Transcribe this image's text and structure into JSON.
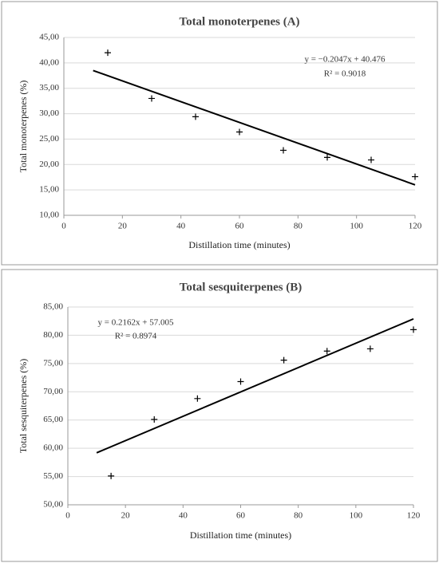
{
  "chart_data": [
    {
      "type": "scatter",
      "title": "Total monoterpenes (A)",
      "x_label": "Distillation time (minutes)",
      "y_label": "Total monoterpenes (%)",
      "annotations": [
        "y = −0.2047x + 40.476",
        "R² = 0.9018"
      ],
      "x": [
        15,
        30,
        45,
        60,
        75,
        90,
        105,
        120
      ],
      "values": [
        42.0,
        33.0,
        29.4,
        26.4,
        22.8,
        21.4,
        20.9,
        17.6
      ],
      "color": "#000000",
      "trendline": {
        "x": [
          10,
          120
        ],
        "values": [
          38.5,
          16.0
        ]
      },
      "xlim": [
        0,
        120
      ],
      "xticks": [
        0,
        20,
        40,
        60,
        80,
        100,
        120
      ],
      "ylim": [
        10,
        45
      ],
      "yticks": [
        {
          "value": 10,
          "label": "10,00"
        },
        {
          "value": 15,
          "label": "15,00"
        },
        {
          "value": 20,
          "label": "20,00"
        },
        {
          "value": 25,
          "label": "25,00"
        },
        {
          "value": 30,
          "label": "30,00"
        },
        {
          "value": 35,
          "label": "35,00"
        },
        {
          "value": 40,
          "label": "40,00"
        },
        {
          "value": 45,
          "label": "45,00"
        }
      ],
      "grid": true
    },
    {
      "type": "scatter",
      "title": "Total sesquiterpenes (B)",
      "x_label": "Distillation time (minutes)",
      "y_label": "Total sesquiterpenes (%)",
      "annotations": [
        "y = 0.2162x + 57.005",
        "R² = 0.8974"
      ],
      "x": [
        15,
        30,
        45,
        60,
        75,
        90,
        105,
        120
      ],
      "values": [
        55.1,
        65.1,
        68.8,
        71.8,
        75.6,
        77.2,
        77.6,
        81.0
      ],
      "color": "#000000",
      "trendline": {
        "x": [
          10,
          120
        ],
        "values": [
          59.2,
          82.9
        ]
      },
      "xlim": [
        0,
        120
      ],
      "xticks": [
        0,
        20,
        40,
        60,
        80,
        100,
        120
      ],
      "ylim": [
        50,
        85
      ],
      "yticks": [
        {
          "value": 50,
          "label": "50,00"
        },
        {
          "value": 55,
          "label": "55,00"
        },
        {
          "value": 60,
          "label": "60,00"
        },
        {
          "value": 65,
          "label": "65,00"
        },
        {
          "value": 70,
          "label": "70,00"
        },
        {
          "value": 75,
          "label": "75,00"
        },
        {
          "value": 80,
          "label": "80,00"
        },
        {
          "value": 85,
          "label": "85,00"
        }
      ],
      "grid": true
    }
  ]
}
